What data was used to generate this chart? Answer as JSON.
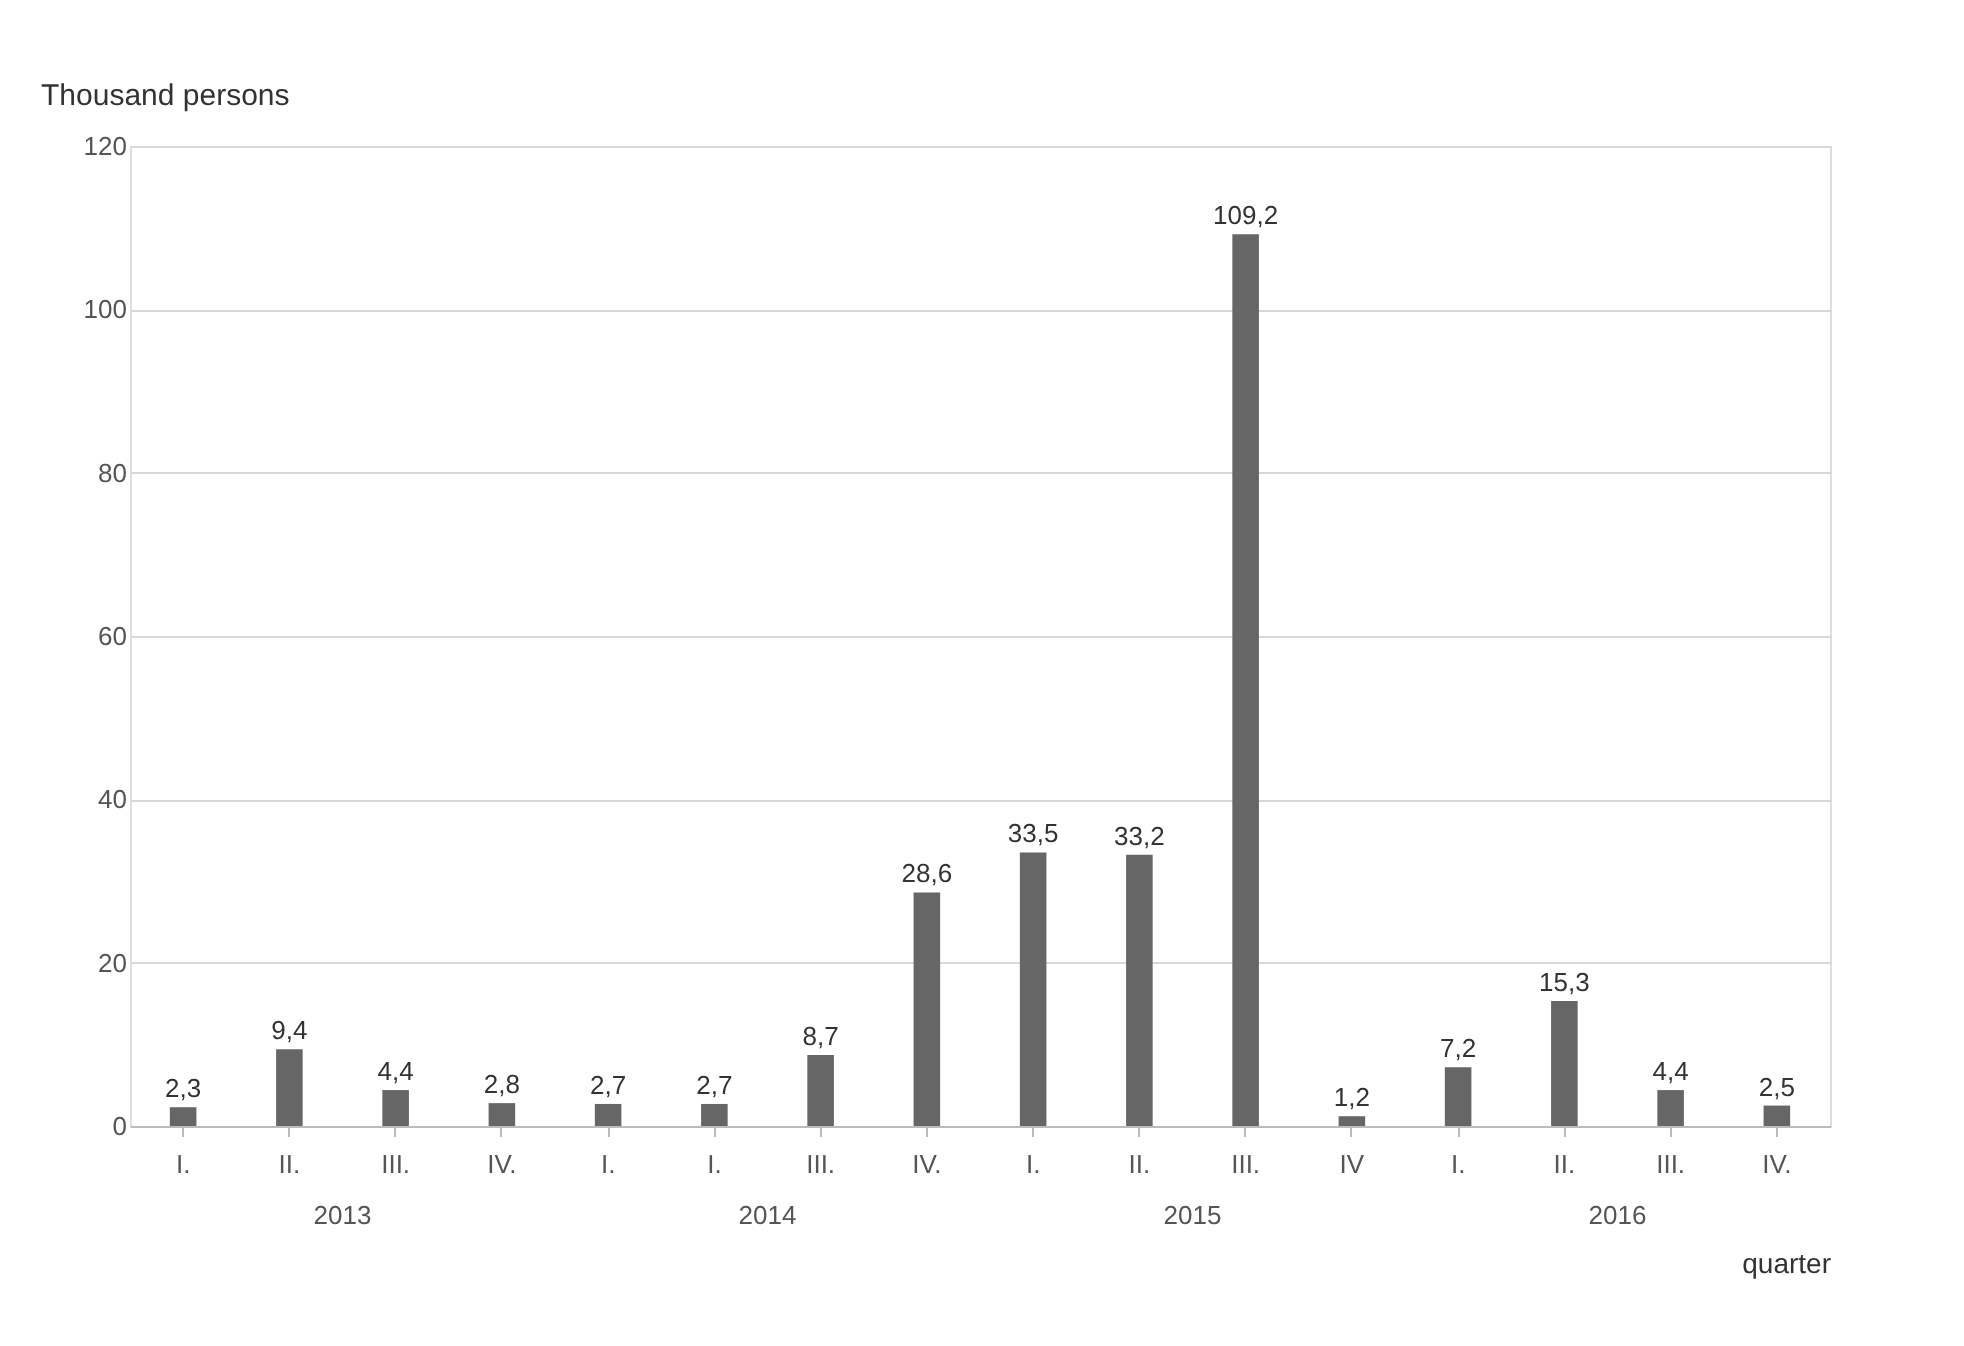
{
  "chart_data": {
    "type": "bar",
    "ylabel": "Thousand persons",
    "xlabel": "quarter",
    "categories": [
      "I.",
      "II.",
      "III.",
      "IV.",
      "I.",
      "I.",
      "III.",
      "IV.",
      "I.",
      "II.",
      "III.",
      "IV",
      "I.",
      "II.",
      "III.",
      "IV."
    ],
    "values": [
      2.3,
      9.4,
      4.4,
      2.8,
      2.7,
      2.7,
      8.7,
      28.6,
      33.5,
      33.2,
      109.2,
      1.2,
      7.2,
      15.3,
      4.4,
      2.5
    ],
    "value_labels": [
      "2,3",
      "9,4",
      "4,4",
      "2,8",
      "2,7",
      "2,7",
      "8,7",
      "28,6",
      "33,5",
      "33,2",
      "109,2",
      "1,2",
      "7,2",
      "15,3",
      "4,4",
      "2,5"
    ],
    "color": "#666666",
    "ylim": [
      0,
      120
    ],
    "yticks": [
      0,
      20,
      40,
      60,
      80,
      100,
      120
    ],
    "grid": "y",
    "annotations": [
      "2013",
      "2014",
      "2015",
      "2016"
    ]
  }
}
